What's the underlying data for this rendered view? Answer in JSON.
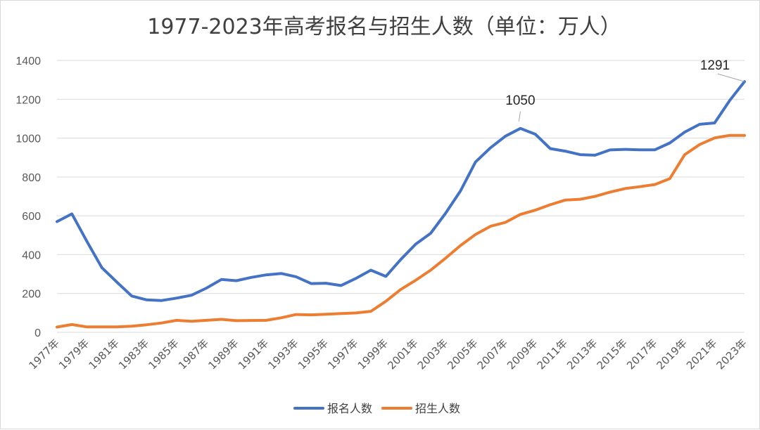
{
  "chart_data": {
    "type": "line",
    "title": "1977-2023年高考报名与招生人数（单位：万人）",
    "ylim": [
      0,
      1400
    ],
    "yticks": [
      0,
      200,
      400,
      600,
      800,
      1000,
      1200,
      1400
    ],
    "grid": true,
    "legend_position": "bottom",
    "x": [
      1977,
      1978,
      1979,
      1980,
      1981,
      1982,
      1983,
      1984,
      1985,
      1986,
      1987,
      1988,
      1989,
      1990,
      1991,
      1992,
      1993,
      1994,
      1995,
      1996,
      1997,
      1998,
      1999,
      2000,
      2001,
      2002,
      2003,
      2004,
      2005,
      2006,
      2007,
      2008,
      2009,
      2010,
      2011,
      2012,
      2013,
      2014,
      2015,
      2016,
      2017,
      2018,
      2019,
      2020,
      2021,
      2022,
      2023
    ],
    "xtick_labels": [
      "1977年",
      "1979年",
      "1981年",
      "1983年",
      "1985年",
      "1987年",
      "1989年",
      "1991年",
      "1993年",
      "1995年",
      "1997年",
      "1999年",
      "2001年",
      "2003年",
      "2005年",
      "2007年",
      "2009年",
      "2011年",
      "2013年",
      "2015年",
      "2017年",
      "2019年",
      "2021年",
      "2023年"
    ],
    "series": [
      {
        "name": "报名人数",
        "color": "#4472c4",
        "values": [
          570,
          610,
          468,
          333,
          259,
          187,
          167,
          164,
          176,
          191,
          228,
          272,
          266,
          283,
          296,
          303,
          286,
          251,
          253,
          241,
          278,
          320,
          288,
          375,
          454,
          510,
          613,
          729,
          877,
          950,
          1010,
          1050,
          1020,
          946,
          933,
          915,
          912,
          939,
          942,
          940,
          940,
          975,
          1031,
          1071,
          1078,
          1193,
          1291
        ]
      },
      {
        "name": "招生人数",
        "color": "#ed7d31",
        "values": [
          27,
          40,
          28,
          28,
          28,
          32,
          39,
          48,
          62,
          57,
          62,
          67,
          60,
          61,
          62,
          75,
          92,
          90,
          93,
          97,
          100,
          108,
          160,
          221,
          268,
          320,
          382,
          447,
          504,
          546,
          566,
          607,
          629,
          657,
          681,
          685,
          700,
          722,
          740,
          750,
          761,
          791,
          915,
          967,
          1001,
          1014,
          1014
        ]
      }
    ],
    "annotations": [
      {
        "text": "1050",
        "x": 2008,
        "y": 1050
      },
      {
        "text": "1291",
        "x": 2023,
        "y": 1291
      }
    ]
  }
}
